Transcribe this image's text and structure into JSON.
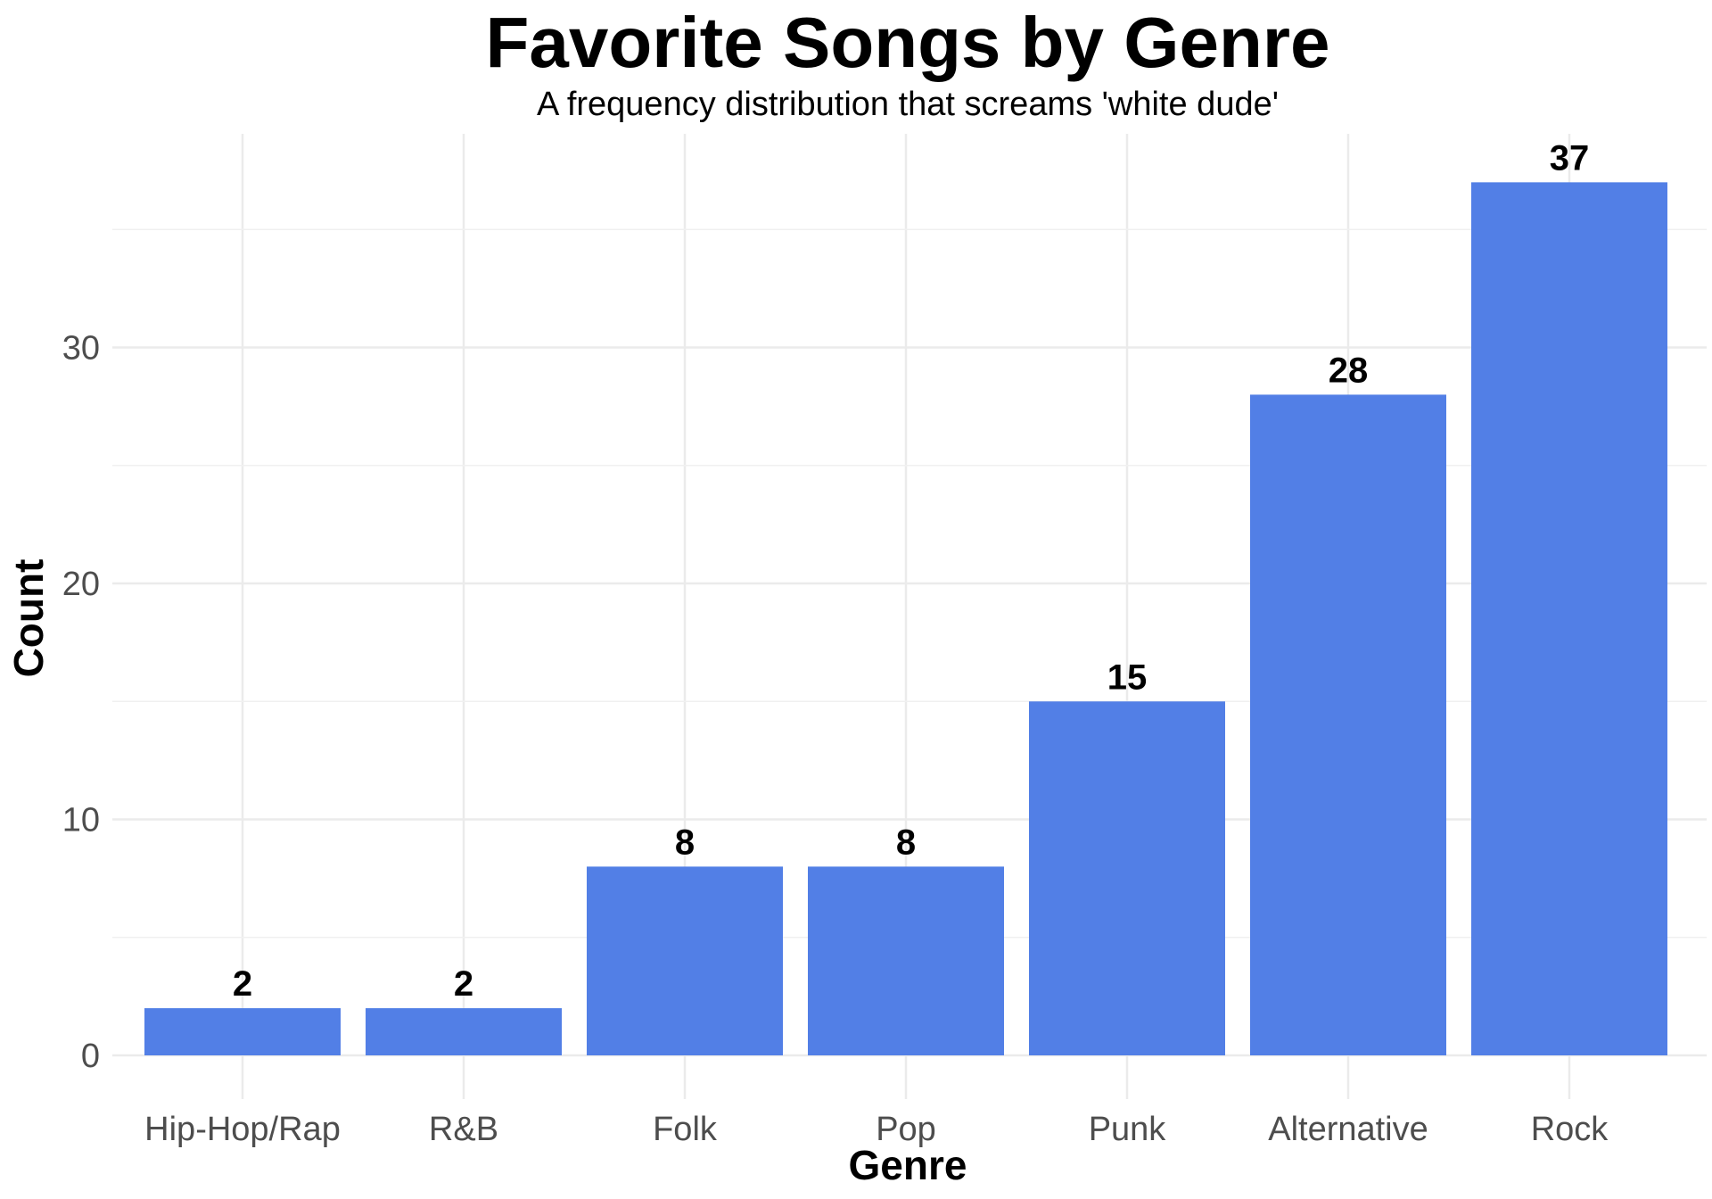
{
  "chart_data": {
    "type": "bar",
    "title": "Favorite Songs by Genre",
    "subtitle": "A frequency distribution that screams 'white dude'",
    "xlabel": "Genre",
    "ylabel": "Count",
    "categories": [
      "Hip-Hop/Rap",
      "R&B",
      "Folk",
      "Pop",
      "Punk",
      "Alternative",
      "Rock"
    ],
    "values": [
      2,
      2,
      8,
      8,
      15,
      28,
      37
    ],
    "ylim": [
      0,
      37
    ],
    "yticks": [
      0,
      10,
      20,
      30
    ],
    "grid": true,
    "legend": "none",
    "bar_color": "#527fe6",
    "data_labels": true
  }
}
